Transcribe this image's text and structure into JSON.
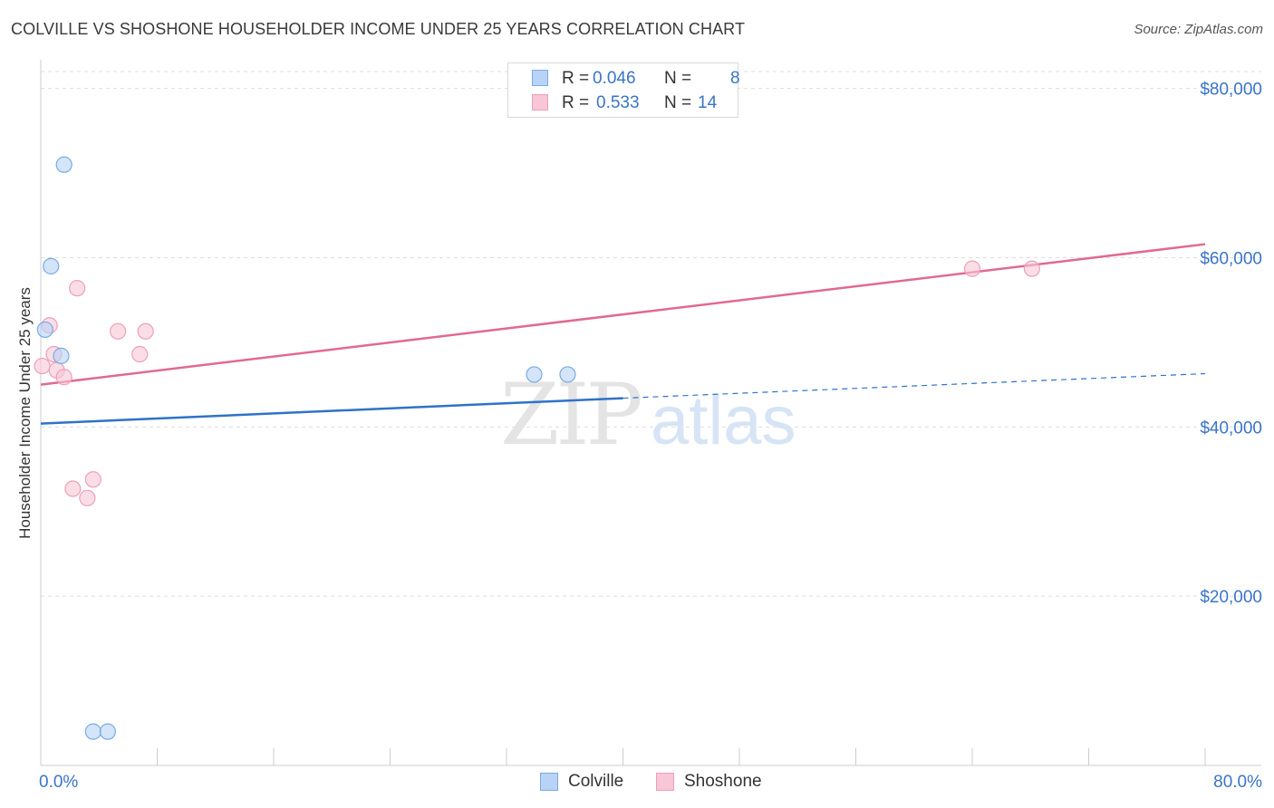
{
  "header": {
    "title": "COLVILLE VS SHOSHONE HOUSEHOLDER INCOME UNDER 25 YEARS CORRELATION CHART",
    "source": "Source: ZipAtlas.com"
  },
  "legend": {
    "rows": [
      {
        "r_label": "R =",
        "r_value": "0.046",
        "n_label": "N =",
        "n_value": "8"
      },
      {
        "r_label": "R =",
        "r_value": "0.533",
        "n_label": "N =",
        "n_value": "14"
      }
    ]
  },
  "colors": {
    "colville_fill": "#b8d3f5",
    "colville_stroke": "#7aaae6",
    "colville_line": "#2f72c9",
    "shoshone_fill": "#f8c6d6",
    "shoshone_stroke": "#eca0ba",
    "shoshone_line": "#e06a91",
    "tick_label": "#3a74c8",
    "grid": "#dddddd"
  },
  "chart_data": {
    "type": "scatter",
    "title": "COLVILLE VS SHOSHONE HOUSEHOLDER INCOME UNDER 25 YEARS CORRELATION CHART",
    "xlabel": "",
    "ylabel": "Householder Income Under 25 years",
    "xlim": [
      0,
      80
    ],
    "ylim": [
      0,
      82000
    ],
    "x_tick_labels": [
      "0.0%",
      "80.0%"
    ],
    "y_ticks": [
      20000,
      40000,
      60000,
      80000
    ],
    "y_tick_labels": [
      "$20,000",
      "$40,000",
      "$60,000",
      "$80,000"
    ],
    "grid": "horizontal dashed",
    "legend_position": "top-center",
    "series": [
      {
        "name": "Colville",
        "points": [
          {
            "x": 1.6,
            "y": 71000
          },
          {
            "x": 0.7,
            "y": 59000
          },
          {
            "x": 0.3,
            "y": 51500
          },
          {
            "x": 1.4,
            "y": 48400
          },
          {
            "x": 3.6,
            "y": 4000
          },
          {
            "x": 4.6,
            "y": 4000
          },
          {
            "x": 33.9,
            "y": 46200
          },
          {
            "x": 36.2,
            "y": 46200
          }
        ],
        "trend": {
          "x0": 0,
          "y0": 40400,
          "x1": 40,
          "y1": 43400,
          "dashed_to_x": 80,
          "dashed_to_y": 46300
        }
      },
      {
        "name": "Shoshone",
        "points": [
          {
            "x": 0.1,
            "y": 47200
          },
          {
            "x": 0.6,
            "y": 52000
          },
          {
            "x": 0.9,
            "y": 48600
          },
          {
            "x": 1.1,
            "y": 46700
          },
          {
            "x": 1.6,
            "y": 45900
          },
          {
            "x": 2.5,
            "y": 56400
          },
          {
            "x": 5.3,
            "y": 51300
          },
          {
            "x": 7.2,
            "y": 51300
          },
          {
            "x": 6.8,
            "y": 48600
          },
          {
            "x": 2.2,
            "y": 32700
          },
          {
            "x": 3.2,
            "y": 31600
          },
          {
            "x": 3.6,
            "y": 33800
          },
          {
            "x": 64.0,
            "y": 58700
          },
          {
            "x": 68.1,
            "y": 58700
          }
        ],
        "trend": {
          "x0": 0,
          "y0": 45000,
          "x1": 80,
          "y1": 61600
        }
      }
    ]
  }
}
